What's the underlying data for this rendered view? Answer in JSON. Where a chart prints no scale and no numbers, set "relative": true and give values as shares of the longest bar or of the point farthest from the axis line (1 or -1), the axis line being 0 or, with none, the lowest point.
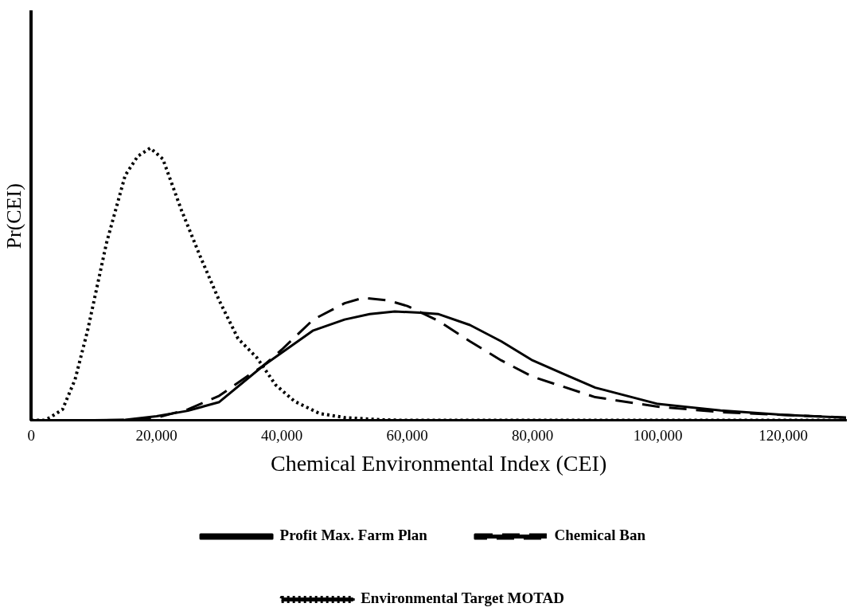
{
  "chart_data": {
    "type": "line",
    "relative": true,
    "xlabel": "Chemical Environmental Index (CEI)",
    "ylabel": "Pr(CEI)",
    "xlim": [
      0,
      130000
    ],
    "xticks": [
      0,
      {
        "value": 20000,
        "label": "20,000"
      },
      {
        "value": 40000,
        "label": "40,000"
      },
      {
        "value": 60000,
        "label": "60,000"
      },
      {
        "value": 80000,
        "label": "80,000"
      },
      {
        "value": 100000,
        "label": "100,000"
      },
      {
        "value": 120000,
        "label": "120,000"
      }
    ],
    "legend": "bottom",
    "marker": "none",
    "series": [
      {
        "name": "Profit Max. Farm Plan",
        "color": "#000000",
        "line_style": "solid",
        "x": [
          10000,
          15000,
          20000,
          25000,
          30000,
          37000,
          45000,
          50000,
          54000,
          58000,
          62000,
          65000,
          70000,
          75000,
          80000,
          85000,
          90000,
          100000,
          110000,
          120000,
          130000
        ],
        "values": [
          0,
          0.002,
          0.015,
          0.035,
          0.067,
          0.2,
          0.33,
          0.37,
          0.39,
          0.4,
          0.395,
          0.39,
          0.35,
          0.29,
          0.22,
          0.17,
          0.12,
          0.06,
          0.036,
          0.02,
          0.01
        ]
      },
      {
        "name": "Chemical Ban",
        "color": "#000000",
        "line_style": "dashed",
        "x": [
          12000,
          16000,
          20000,
          25000,
          30000,
          35000,
          37000,
          40000,
          45000,
          50000,
          53000,
          57000,
          60000,
          65000,
          70000,
          75000,
          80000,
          90000,
          100000,
          110000,
          120000,
          130000
        ],
        "values": [
          0,
          0.003,
          0.01,
          0.04,
          0.09,
          0.17,
          0.2,
          0.26,
          0.37,
          0.43,
          0.45,
          0.44,
          0.42,
          0.365,
          0.29,
          0.22,
          0.16,
          0.085,
          0.05,
          0.03,
          0.02,
          0.01
        ]
      },
      {
        "name": "Environmental Target MOTAD",
        "color": "#000000",
        "line_style": "dotted",
        "x": [
          0,
          2000,
          3000,
          5000,
          7000,
          9000,
          12000,
          15000,
          17000,
          19000,
          21000,
          24000,
          27000,
          30000,
          33000,
          36000,
          39000,
          42000,
          46000,
          50000,
          56000,
          60000,
          130000
        ],
        "values": [
          0,
          0,
          0.01,
          0.04,
          0.15,
          0.33,
          0.65,
          0.9,
          0.97,
          1,
          0.96,
          0.77,
          0.6,
          0.44,
          0.3,
          0.23,
          0.13,
          0.07,
          0.025,
          0.01,
          0.002,
          0,
          0
        ]
      }
    ]
  }
}
